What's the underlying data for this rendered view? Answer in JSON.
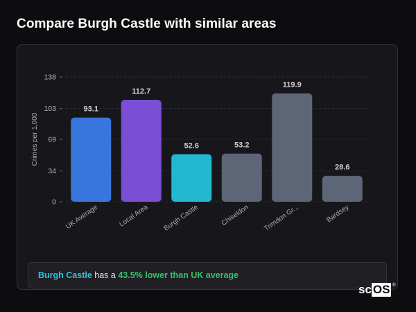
{
  "page": {
    "title": "Compare Burgh Castle with similar areas"
  },
  "chart_data": {
    "type": "bar",
    "ylabel": "Crimes per 1,000",
    "xlabel": "",
    "ylim": [
      0,
      138
    ],
    "yticks": [
      0,
      34,
      69,
      103,
      138
    ],
    "grid": true,
    "categories": [
      "UK Average",
      "Local Area",
      "Burgh Castle",
      "Chiseldon",
      "Trimdon Gr...",
      "Bardsey"
    ],
    "values": [
      93.1,
      112.7,
      52.6,
      53.2,
      119.9,
      28.6
    ],
    "value_labels": [
      "93.1",
      "112.7",
      "52.6",
      "53.2",
      "119.9",
      "28.6"
    ],
    "colors": [
      "#3876de",
      "#7a4fd6",
      "#21b8d0",
      "#5d6676",
      "#5d6676",
      "#5d6676"
    ]
  },
  "summary": {
    "area_name": "Burgh Castle",
    "middle_text": " has a ",
    "stat_text": "43.5% lower than UK average"
  },
  "logo": {
    "part1": "sc",
    "part2": "OS",
    "mark": "®"
  }
}
